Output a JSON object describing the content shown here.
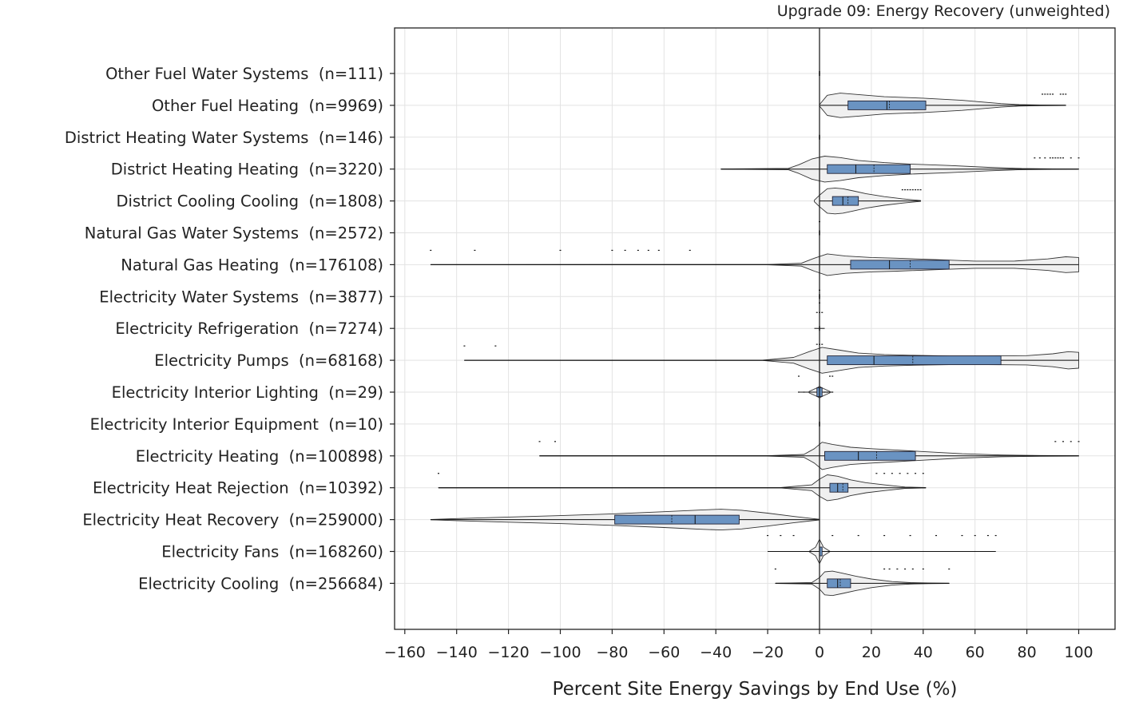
{
  "chart_data": {
    "type": "violin",
    "title": "Upgrade 09: Energy Recovery (unweighted)",
    "xlabel": "Percent Site Energy Savings by End Use (%)",
    "ylabel": "",
    "xlim": [
      -165,
      113
    ],
    "xticks": [
      -160,
      -140,
      -120,
      -100,
      -80,
      -60,
      -40,
      -20,
      0,
      20,
      40,
      60,
      80,
      100
    ],
    "grid": true,
    "colors": {
      "box": "#6a93c2",
      "violin": "#ededed",
      "grid": "#e3e3e3",
      "zero_line": "#222222"
    },
    "categories": [
      {
        "name": "Other Fuel Water Systems",
        "n_label": "(n=111)",
        "min": 0,
        "q1": 0,
        "median": 0,
        "mean": 0,
        "q3": 0,
        "max": 0,
        "violin": [],
        "outliers": []
      },
      {
        "name": "Other Fuel Heating",
        "n_label": "(n=9969)",
        "min": 0,
        "q1": 11,
        "median": 26,
        "mean": 27,
        "q3": 41,
        "max": 95,
        "violin": [
          [
            0,
            0.05
          ],
          [
            3,
            0.7
          ],
          [
            8,
            0.85
          ],
          [
            15,
            0.75
          ],
          [
            25,
            0.6
          ],
          [
            40,
            0.5
          ],
          [
            55,
            0.35
          ],
          [
            70,
            0.12
          ],
          [
            77,
            0.05
          ],
          [
            85,
            0.02
          ],
          [
            95,
            0.01
          ]
        ],
        "outliers": [
          [
            86,
            0.35
          ],
          [
            87,
            0.35
          ],
          [
            88,
            0.35
          ],
          [
            89,
            0.35
          ],
          [
            90,
            0.35
          ],
          [
            93,
            0.35
          ],
          [
            94,
            0.35
          ],
          [
            95,
            0.35
          ]
        ]
      },
      {
        "name": "District Heating Water Systems",
        "n_label": "(n=146)",
        "min": 0,
        "q1": 0,
        "median": 0,
        "mean": 0,
        "q3": 0,
        "max": 0,
        "violin": [],
        "outliers": []
      },
      {
        "name": "District Heating Heating",
        "n_label": "(n=3220)",
        "min": -38,
        "q1": 3,
        "median": 14,
        "mean": 21,
        "q3": 35,
        "max": 100,
        "violin": [
          [
            -38,
            0.005
          ],
          [
            -12,
            0.05
          ],
          [
            -8,
            0.3
          ],
          [
            -3,
            0.7
          ],
          [
            2,
            0.9
          ],
          [
            8,
            0.8
          ],
          [
            15,
            0.6
          ],
          [
            25,
            0.45
          ],
          [
            35,
            0.35
          ],
          [
            50,
            0.25
          ],
          [
            65,
            0.12
          ],
          [
            78,
            0.04
          ],
          [
            90,
            0.015
          ],
          [
            100,
            0.005
          ]
        ],
        "outliers": [
          [
            83,
            0.35
          ],
          [
            85,
            0.35
          ],
          [
            87,
            0.35
          ],
          [
            89,
            0.35
          ],
          [
            90,
            0.35
          ],
          [
            91,
            0.35
          ],
          [
            92,
            0.35
          ],
          [
            93,
            0.35
          ],
          [
            94,
            0.35
          ],
          [
            97,
            0.35
          ],
          [
            100,
            0.35
          ]
        ]
      },
      {
        "name": "District Cooling Cooling",
        "n_label": "(n=1808)",
        "min": 0,
        "q1": 5,
        "median": 9,
        "mean": 11,
        "q3": 15,
        "max": 39,
        "violin": [
          [
            -2,
            0.05
          ],
          [
            0,
            0.4
          ],
          [
            3,
            0.85
          ],
          [
            6,
            0.9
          ],
          [
            9,
            0.85
          ],
          [
            13,
            0.7
          ],
          [
            18,
            0.5
          ],
          [
            25,
            0.3
          ],
          [
            32,
            0.15
          ],
          [
            39,
            0.03
          ]
        ],
        "outliers": [
          [
            32,
            0.35
          ],
          [
            33,
            0.35
          ],
          [
            34,
            0.35
          ],
          [
            35,
            0.35
          ],
          [
            36,
            0.35
          ],
          [
            37,
            0.35
          ],
          [
            38,
            0.35
          ],
          [
            39,
            0.35
          ]
        ]
      },
      {
        "name": "Natural Gas Water Systems",
        "n_label": "(n=2572)",
        "min": 0,
        "q1": 0,
        "median": 0,
        "mean": 0,
        "q3": 0,
        "max": 0,
        "violin": [],
        "outliers": [
          [
            0,
            0.35
          ]
        ]
      },
      {
        "name": "Natural Gas Heating",
        "n_label": "(n=176108)",
        "min": -150,
        "q1": 12,
        "median": 27,
        "mean": 35,
        "q3": 50,
        "max": 100,
        "violin": [
          [
            -150,
            0.004
          ],
          [
            -20,
            0.01
          ],
          [
            -7,
            0.1
          ],
          [
            -2,
            0.45
          ],
          [
            3,
            0.75
          ],
          [
            10,
            0.6
          ],
          [
            20,
            0.5
          ],
          [
            30,
            0.45
          ],
          [
            45,
            0.35
          ],
          [
            60,
            0.25
          ],
          [
            75,
            0.25
          ],
          [
            88,
            0.4
          ],
          [
            95,
            0.55
          ],
          [
            100,
            0.5
          ]
        ],
        "outliers": [
          [
            -150,
            0.45
          ],
          [
            -133,
            0.45
          ],
          [
            -100,
            0.45
          ],
          [
            -80,
            0.45
          ],
          [
            -75,
            0.45
          ],
          [
            -70,
            0.45
          ],
          [
            -66,
            0.45
          ],
          [
            -62,
            0.45
          ],
          [
            -50,
            0.45
          ]
        ]
      },
      {
        "name": "Electricity Water Systems",
        "n_label": "(n=3877)",
        "min": 0,
        "q1": 0,
        "median": 0,
        "mean": 0,
        "q3": 0,
        "max": 0,
        "violin": [],
        "outliers": [
          [
            0,
            0.2
          ],
          [
            0,
            -0.2
          ]
        ]
      },
      {
        "name": "Electricity Refrigeration",
        "n_label": "(n=7274)",
        "min": -2,
        "q1": 0,
        "median": 0,
        "mean": 0,
        "q3": 0,
        "max": 2,
        "violin": [],
        "outliers": [
          [
            -1,
            0.5
          ],
          [
            0,
            0.5
          ],
          [
            1,
            0.5
          ],
          [
            -1,
            -0.5
          ],
          [
            0,
            -0.5
          ],
          [
            1,
            -0.5
          ]
        ]
      },
      {
        "name": "Electricity Pumps",
        "n_label": "(n=68168)",
        "min": -137,
        "q1": 3,
        "median": 21,
        "mean": 36,
        "q3": 70,
        "max": 100,
        "violin": [
          [
            -137,
            0.004
          ],
          [
            -22,
            0.01
          ],
          [
            -10,
            0.2
          ],
          [
            -4,
            0.6
          ],
          [
            1,
            0.9
          ],
          [
            8,
            0.7
          ],
          [
            15,
            0.5
          ],
          [
            25,
            0.4
          ],
          [
            35,
            0.35
          ],
          [
            50,
            0.3
          ],
          [
            65,
            0.3
          ],
          [
            80,
            0.32
          ],
          [
            90,
            0.45
          ],
          [
            96,
            0.6
          ],
          [
            100,
            0.55
          ]
        ],
        "outliers": [
          [
            -137,
            0.45
          ],
          [
            -125,
            0.45
          ],
          [
            -8,
            -0.5
          ],
          [
            4,
            -0.5
          ],
          [
            5,
            -0.5
          ]
        ]
      },
      {
        "name": "Electricity Interior Lighting",
        "n_label": "(n=29)",
        "min": -8,
        "q1": -1,
        "median": 0,
        "mean": 0,
        "q3": 1,
        "max": 5,
        "violin": [
          [
            -4,
            0.05
          ],
          [
            -1,
            0.3
          ],
          [
            0,
            0.4
          ],
          [
            1,
            0.3
          ],
          [
            4,
            0.05
          ]
        ],
        "outliers": [
          [
            -8,
            0
          ],
          [
            -6,
            0
          ],
          [
            2,
            0
          ],
          [
            3,
            0
          ],
          [
            4,
            0
          ],
          [
            5,
            0
          ]
        ]
      },
      {
        "name": "Electricity Interior Equipment",
        "n_label": "(n=10)",
        "min": 0,
        "q1": 0,
        "median": 0,
        "mean": 0,
        "q3": 0,
        "max": 0,
        "violin": [],
        "outliers": []
      },
      {
        "name": "Electricity Heating",
        "n_label": "(n=100898)",
        "min": -108,
        "q1": 2,
        "median": 15,
        "mean": 22,
        "q3": 37,
        "max": 100,
        "violin": [
          [
            -108,
            0.004
          ],
          [
            -20,
            0.01
          ],
          [
            -6,
            0.1
          ],
          [
            -2,
            0.5
          ],
          [
            1,
            0.95
          ],
          [
            5,
            0.8
          ],
          [
            12,
            0.6
          ],
          [
            20,
            0.5
          ],
          [
            30,
            0.4
          ],
          [
            40,
            0.3
          ],
          [
            55,
            0.15
          ],
          [
            70,
            0.06
          ],
          [
            85,
            0.03
          ],
          [
            100,
            0.01
          ]
        ],
        "outliers": [
          [
            -108,
            0.45
          ],
          [
            -102,
            0.45
          ],
          [
            91,
            0.45
          ],
          [
            94,
            0.45
          ],
          [
            97,
            0.45
          ],
          [
            100,
            0.45
          ]
        ]
      },
      {
        "name": "Electricity Heat Rejection",
        "n_label": "(n=10392)",
        "min": -147,
        "q1": 4,
        "median": 7,
        "mean": 9,
        "q3": 11,
        "max": 41,
        "violin": [
          [
            -147,
            0.004
          ],
          [
            -15,
            0.01
          ],
          [
            -3,
            0.2
          ],
          [
            0,
            0.6
          ],
          [
            3,
            0.9
          ],
          [
            7,
            0.8
          ],
          [
            12,
            0.55
          ],
          [
            18,
            0.35
          ],
          [
            25,
            0.2
          ],
          [
            33,
            0.05
          ],
          [
            41,
            0.01
          ]
        ],
        "outliers": [
          [
            -147,
            0.45
          ],
          [
            22,
            0.45
          ],
          [
            25,
            0.45
          ],
          [
            28,
            0.45
          ],
          [
            31,
            0.45
          ],
          [
            34,
            0.45
          ],
          [
            37,
            0.45
          ],
          [
            40,
            0.45
          ]
        ]
      },
      {
        "name": "Electricity Heat Recovery",
        "n_label": "(n=259000)",
        "min": -150,
        "q1": -79,
        "median": -48,
        "mean": -57,
        "q3": -31,
        "max": 0,
        "violin": [
          [
            -150,
            0.01
          ],
          [
            -140,
            0.07
          ],
          [
            -120,
            0.18
          ],
          [
            -100,
            0.28
          ],
          [
            -80,
            0.4
          ],
          [
            -60,
            0.55
          ],
          [
            -45,
            0.68
          ],
          [
            -38,
            0.72
          ],
          [
            -30,
            0.65
          ],
          [
            -20,
            0.45
          ],
          [
            -10,
            0.22
          ],
          [
            -3,
            0.08
          ],
          [
            0,
            0.02
          ]
        ],
        "outliers": []
      },
      {
        "name": "Electricity Fans",
        "n_label": "(n=168260)",
        "min": -20,
        "q1": 0,
        "median": 0,
        "mean": 0,
        "q3": 1,
        "max": 68,
        "violin": [
          [
            -4,
            0.01
          ],
          [
            -1.5,
            0.3
          ],
          [
            0,
            0.85
          ],
          [
            1.5,
            0.3
          ],
          [
            4,
            0.01
          ]
        ],
        "outliers": [
          [
            -20,
            0.5
          ],
          [
            -15,
            0.5
          ],
          [
            -10,
            0.5
          ],
          [
            5,
            0.5
          ],
          [
            15,
            0.5
          ],
          [
            25,
            0.5
          ],
          [
            35,
            0.5
          ],
          [
            45,
            0.5
          ],
          [
            55,
            0.5
          ],
          [
            60,
            0.5
          ],
          [
            65,
            0.5
          ],
          [
            68,
            0.5
          ]
        ]
      },
      {
        "name": "Electricity Cooling",
        "n_label": "(n=256684)",
        "min": -17,
        "q1": 3,
        "median": 7,
        "mean": 8,
        "q3": 12,
        "max": 50,
        "violin": [
          [
            -17,
            0.003
          ],
          [
            -3,
            0.05
          ],
          [
            0,
            0.4
          ],
          [
            2,
            0.8
          ],
          [
            5,
            0.85
          ],
          [
            9,
            0.7
          ],
          [
            14,
            0.5
          ],
          [
            20,
            0.3
          ],
          [
            28,
            0.12
          ],
          [
            35,
            0.05
          ],
          [
            42,
            0.02
          ],
          [
            50,
            0.005
          ]
        ],
        "outliers": [
          [
            -17,
            0.45
          ],
          [
            25,
            0.45
          ],
          [
            27,
            0.45
          ],
          [
            30,
            0.45
          ],
          [
            33,
            0.45
          ],
          [
            36,
            0.45
          ],
          [
            40,
            0.45
          ],
          [
            50,
            0.45
          ]
        ]
      }
    ]
  }
}
